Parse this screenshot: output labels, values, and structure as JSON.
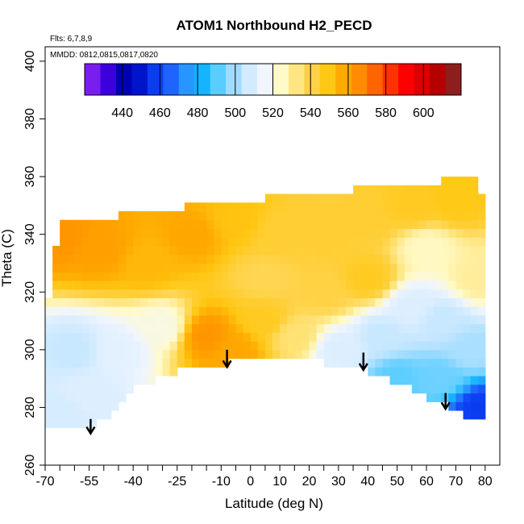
{
  "chart_data": {
    "type": "heatmap",
    "title": "ATOM1 Northbound H2_PECD",
    "annotations": [
      "Flts: 6,7,8,9",
      "MMDD: 0812,0815,0817,0820"
    ],
    "xlabel": "Latitude (deg N)",
    "ylabel": "Theta (C)",
    "xlim": [
      -70,
      85
    ],
    "ylim": [
      260,
      405
    ],
    "x_ticks_major": [
      -70,
      -55,
      -40,
      -25,
      -10,
      0,
      10,
      20,
      30,
      40,
      50,
      60,
      70,
      80
    ],
    "x_ticks_minor": [
      -65,
      -60,
      -50,
      -45,
      -35,
      -30,
      -20,
      -15,
      -5,
      5,
      15,
      25,
      35,
      45,
      55,
      65,
      75
    ],
    "y_ticks": [
      260,
      280,
      300,
      320,
      340,
      360,
      380,
      400
    ],
    "colorbar": {
      "ticks": [
        440,
        460,
        480,
        500,
        520,
        540,
        560,
        580,
        600
      ],
      "range": [
        420,
        620
      ],
      "colors": [
        "#7a1ef0",
        "#3c00dc",
        "#0000b4",
        "#0014cc",
        "#0a3cf0",
        "#1e64ff",
        "#2896ff",
        "#14b4ff",
        "#5acdff",
        "#a0dcff",
        "#d2ebff",
        "#f0f5ff",
        "#fffac8",
        "#ffe682",
        "#ffd246",
        "#ffc814",
        "#ffaa00",
        "#ff8c00",
        "#ff6400",
        "#ff3200",
        "#ff0000",
        "#dc0000",
        "#b40000",
        "#8c1e1e"
      ]
    },
    "data_envelope": {
      "top": [
        [
          -70,
          310
        ],
        [
          -65,
          344
        ],
        [
          -60,
          345
        ],
        [
          -50,
          346
        ],
        [
          -40,
          347
        ],
        [
          -25,
          349
        ],
        [
          -10,
          351
        ],
        [
          0,
          352
        ],
        [
          10,
          353
        ],
        [
          20,
          354
        ],
        [
          30,
          355
        ],
        [
          40,
          356
        ],
        [
          50,
          357
        ],
        [
          60,
          358
        ],
        [
          70,
          359
        ],
        [
          75,
          361
        ],
        [
          78,
          362
        ],
        [
          80,
          340
        ]
      ],
      "bottom": [
        [
          80,
          276
        ],
        [
          75,
          276
        ],
        [
          70,
          279
        ],
        [
          60,
          284
        ],
        [
          50,
          289
        ],
        [
          40,
          293
        ],
        [
          30,
          295
        ],
        [
          20,
          296
        ],
        [
          10,
          298
        ],
        [
          0,
          297
        ],
        [
          -10,
          295
        ],
        [
          -20,
          294
        ],
        [
          -30,
          291
        ],
        [
          -40,
          287
        ],
        [
          -45,
          279
        ],
        [
          -50,
          275
        ],
        [
          -55,
          274
        ],
        [
          -60,
          272
        ],
        [
          -70,
          272
        ]
      ]
    },
    "field_samples": [
      {
        "x": -65,
        "y": 340,
        "value": 565
      },
      {
        "x": -50,
        "y": 335,
        "value": 562
      },
      {
        "x": -35,
        "y": 330,
        "value": 555
      },
      {
        "x": -20,
        "y": 340,
        "value": 560
      },
      {
        "x": -5,
        "y": 345,
        "value": 552
      },
      {
        "x": 10,
        "y": 340,
        "value": 545
      },
      {
        "x": 25,
        "y": 340,
        "value": 545
      },
      {
        "x": 40,
        "y": 345,
        "value": 545
      },
      {
        "x": 55,
        "y": 350,
        "value": 548
      },
      {
        "x": 70,
        "y": 352,
        "value": 550
      },
      {
        "x": 5,
        "y": 325,
        "value": 540
      },
      {
        "x": 25,
        "y": 320,
        "value": 542
      },
      {
        "x": 40,
        "y": 325,
        "value": 548
      },
      {
        "x": -15,
        "y": 305,
        "value": 565
      },
      {
        "x": -5,
        "y": 300,
        "value": 560
      },
      {
        "x": 5,
        "y": 310,
        "value": 548
      },
      {
        "x": 15,
        "y": 305,
        "value": 535
      },
      {
        "x": -60,
        "y": 300,
        "value": 505
      },
      {
        "x": -45,
        "y": 300,
        "value": 512
      },
      {
        "x": -30,
        "y": 308,
        "value": 520
      },
      {
        "x": -55,
        "y": 285,
        "value": 510
      },
      {
        "x": -65,
        "y": 278,
        "value": 508
      },
      {
        "x": 30,
        "y": 300,
        "value": 510
      },
      {
        "x": 45,
        "y": 305,
        "value": 505
      },
      {
        "x": 55,
        "y": 315,
        "value": 510
      },
      {
        "x": 65,
        "y": 310,
        "value": 505
      },
      {
        "x": 50,
        "y": 290,
        "value": 490
      },
      {
        "x": 65,
        "y": 290,
        "value": 492
      },
      {
        "x": 75,
        "y": 300,
        "value": 500
      },
      {
        "x": 78,
        "y": 280,
        "value": 455
      },
      {
        "x": 78,
        "y": 325,
        "value": 530
      },
      {
        "x": 60,
        "y": 335,
        "value": 525
      }
    ],
    "arrows": [
      {
        "x": -54.5,
        "y_top": 276,
        "y_bottom": 271
      },
      {
        "x": -8,
        "y_top": 300,
        "y_bottom": 294
      },
      {
        "x": 38.5,
        "y_top": 299,
        "y_bottom": 293
      },
      {
        "x": 66.5,
        "y_top": 285,
        "y_bottom": 279.5
      }
    ]
  }
}
